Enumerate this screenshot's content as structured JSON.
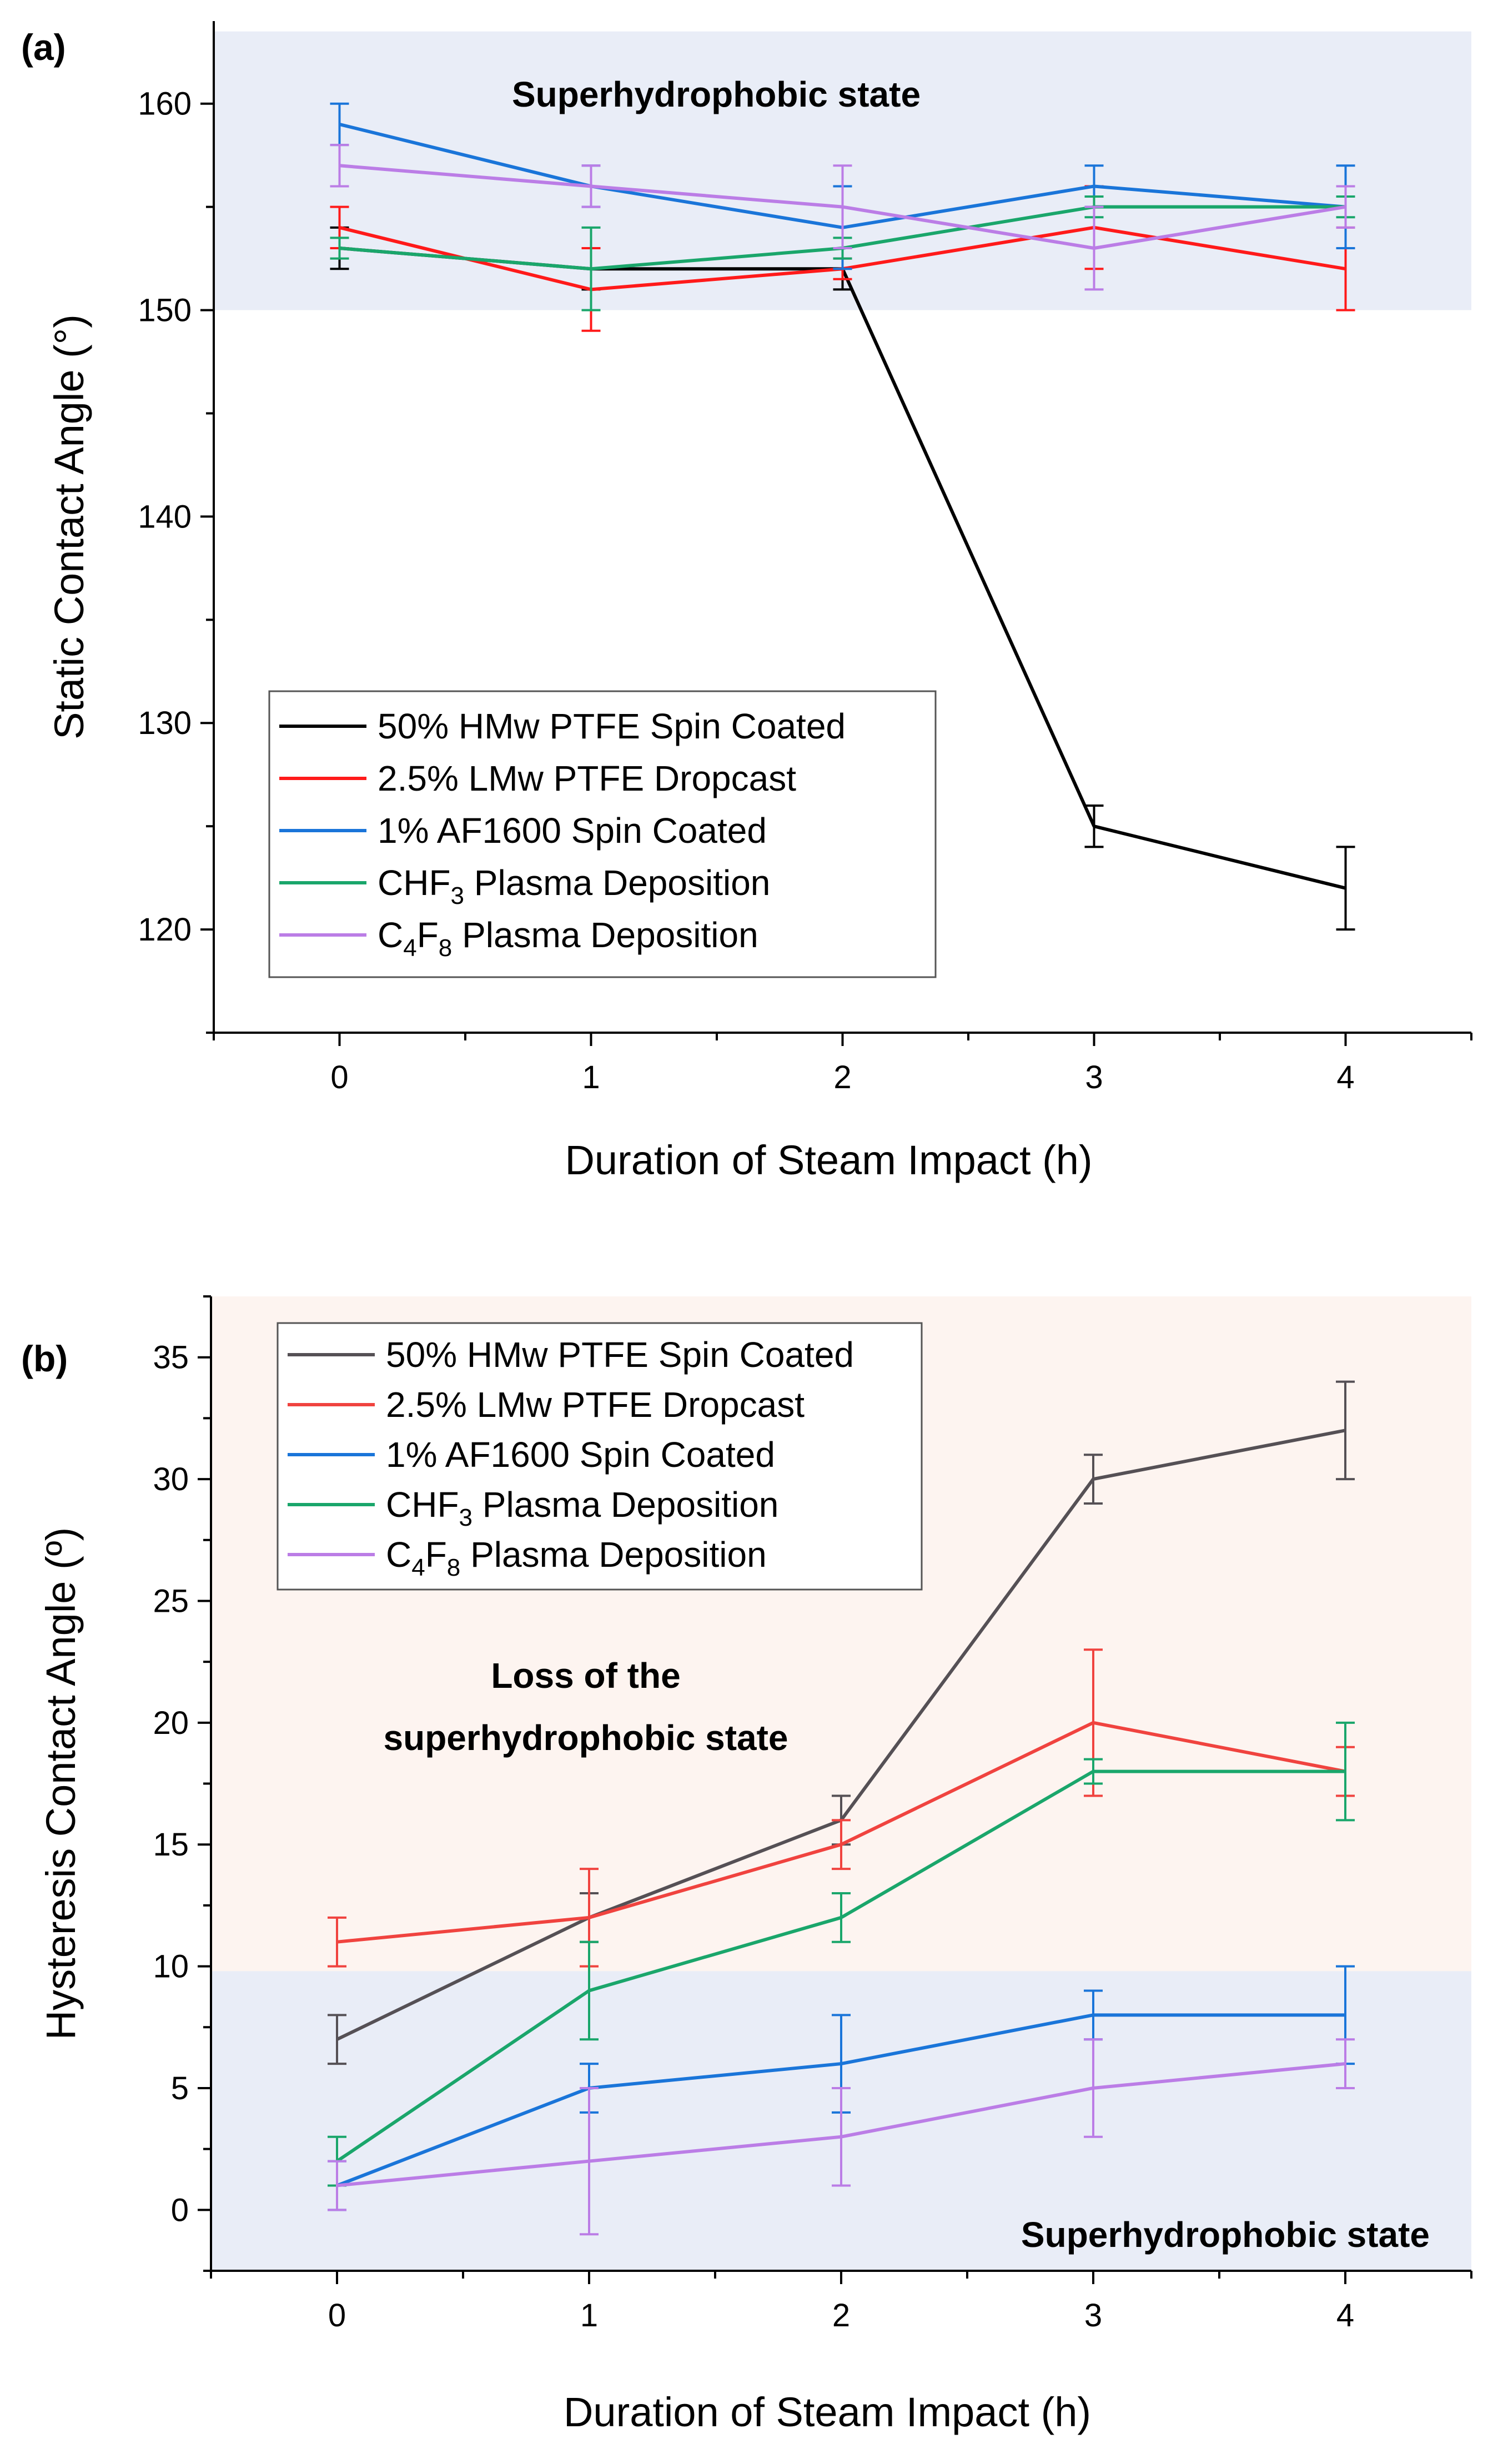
{
  "chart_data": [
    {
      "type": "line",
      "panel_label": "(a)",
      "xlabel": "Duration of Steam Impact (h)",
      "ylabel": "Static Contact Angle (°)",
      "x": [
        0,
        1,
        2,
        3,
        4
      ],
      "xlim": [
        -0.5,
        4.5
      ],
      "ylim": [
        115,
        164
      ],
      "yticks": [
        120,
        130,
        140,
        150,
        160
      ],
      "xticks": [
        0,
        1,
        2,
        3,
        4
      ],
      "regions": [
        {
          "label": "Superhydrophobic state",
          "y_from": 150,
          "y_to": 163.5,
          "color": "#e9edf7"
        }
      ],
      "legend_position": "bottom-left",
      "series": [
        {
          "name": "50% HMw PTFE Spin Coated",
          "legend_main": "50% HMw PTFE Spin Coated",
          "legend_sub": "",
          "legend_tail": "",
          "color": "#000000",
          "values": [
            153,
            152,
            152,
            125,
            122
          ],
          "errors": [
            1,
            1,
            1,
            1,
            2
          ]
        },
        {
          "name": "2.5% LMw PTFE Dropcast",
          "legend_main": "2.5% LMw PTFE Dropcast",
          "legend_sub": "",
          "legend_tail": "",
          "color": "#ff1a1a",
          "values": [
            154,
            151,
            152,
            154,
            152
          ],
          "errors": [
            1,
            2,
            0.5,
            2,
            2
          ]
        },
        {
          "name": "1% AF1600 Spin Coated",
          "legend_main": "1% AF1600 Spin Coated",
          "legend_sub": "",
          "legend_tail": "",
          "color": "#1a75d9",
          "values": [
            159,
            156,
            154,
            156,
            155
          ],
          "errors": [
            1,
            1,
            2,
            1,
            2
          ]
        },
        {
          "name": "CHF3 Plasma Deposition",
          "legend_main": "CHF",
          "legend_sub": "3",
          "legend_tail": " Plasma Deposition",
          "color": "#1aa66b",
          "values": [
            153,
            152,
            153,
            155,
            155
          ],
          "errors": [
            0.5,
            2,
            0.5,
            0.5,
            0.5
          ]
        },
        {
          "name": "C4F8 Plasma Deposition",
          "legend_main": "C",
          "legend_sub": "4",
          "legend_mid": "F",
          "legend_sub2": "8",
          "legend_tail": " Plasma Deposition",
          "color": "#bb7de6",
          "values": [
            157,
            156,
            155,
            153,
            155
          ],
          "errors": [
            1,
            1,
            2,
            2,
            1
          ]
        }
      ]
    },
    {
      "type": "line",
      "panel_label": "(b)",
      "xlabel": "Duration of Steam Impact (h)",
      "ylabel": "Hysteresis Contact Angle (º)",
      "x": [
        0,
        1,
        2,
        3,
        4
      ],
      "xlim": [
        -0.5,
        4.5
      ],
      "ylim": [
        -2.5,
        37.5
      ],
      "yticks": [
        0,
        5,
        10,
        15,
        20,
        25,
        30,
        35
      ],
      "xticks": [
        0,
        1,
        2,
        3,
        4
      ],
      "regions": [
        {
          "label": "Loss of the superhydrophobic state",
          "line1": "Loss of the",
          "line2": "superhydrophobic state",
          "y_from": 9.8,
          "y_to": 37.5,
          "color": "#fdf4f0"
        },
        {
          "label": "Superhydrophobic state",
          "y_from": -2.5,
          "y_to": 9.8,
          "color": "#e9edf7"
        }
      ],
      "legend_position": "top-left",
      "series": [
        {
          "name": "50% HMw PTFE Spin Coated",
          "legend_main": "50% HMw PTFE Spin Coated",
          "legend_sub": "",
          "legend_tail": "",
          "color": "#555055",
          "values": [
            7,
            12,
            16,
            30,
            32
          ],
          "errors": [
            1,
            1,
            1,
            1,
            2
          ]
        },
        {
          "name": "2.5% LMw PTFE Dropcast",
          "legend_main": "2.5% LMw PTFE Dropcast",
          "legend_sub": "",
          "legend_tail": "",
          "color": "#f0433f",
          "values": [
            11,
            12,
            15,
            20,
            18
          ],
          "errors": [
            1,
            2,
            1,
            3,
            1
          ]
        },
        {
          "name": "1% AF1600 Spin Coated",
          "legend_main": "1% AF1600 Spin Coated",
          "legend_sub": "",
          "legend_tail": "",
          "color": "#1a75d9",
          "values": [
            1,
            5,
            6,
            8,
            8
          ],
          "errors": [
            1,
            1,
            2,
            1,
            2
          ]
        },
        {
          "name": "CHF3 Plasma Deposition",
          "legend_main": "CHF",
          "legend_sub": "3",
          "legend_tail": " Plasma Deposition",
          "color": "#1aa66b",
          "values": [
            2,
            9,
            12,
            18,
            18
          ],
          "errors": [
            1,
            2,
            1,
            0.5,
            2
          ]
        },
        {
          "name": "C4F8 Plasma Deposition",
          "legend_main": "C",
          "legend_sub": "4",
          "legend_mid": "F",
          "legend_sub2": "8",
          "legend_tail": " Plasma Deposition",
          "color": "#bb7de6",
          "values": [
            1,
            2,
            3,
            5,
            6
          ],
          "errors": [
            1,
            3,
            2,
            2,
            1
          ]
        }
      ]
    }
  ]
}
